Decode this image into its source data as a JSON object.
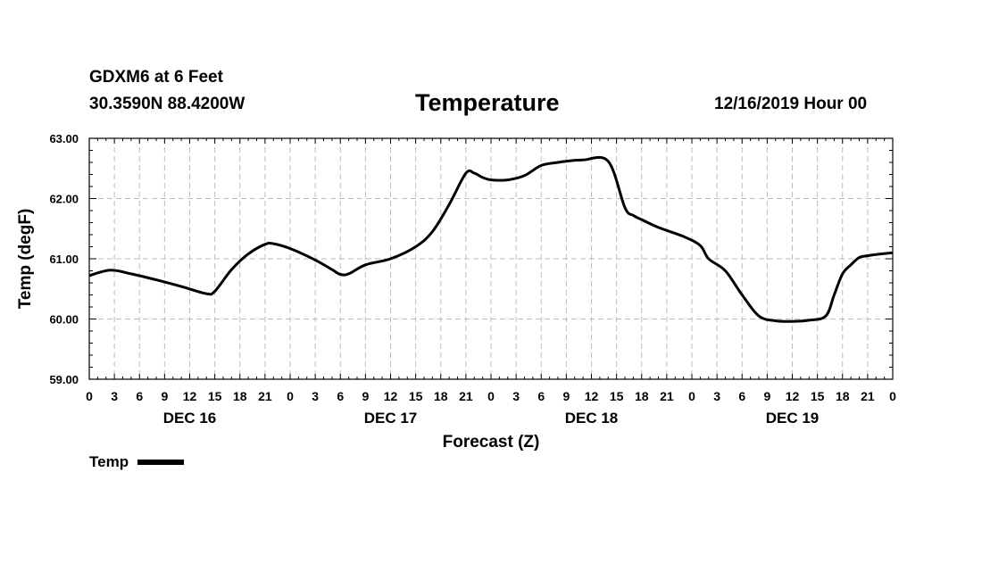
{
  "header": {
    "station": "GDXM6 at 6 Feet",
    "coordinates": "30.3590N 88.4200W",
    "title": "Temperature",
    "datetime": "12/16/2019 Hour 00"
  },
  "chart_data": {
    "type": "line",
    "title": "Temperature",
    "xlabel": "Forecast (Z)",
    "ylabel": "Temp (degF)",
    "ylim": [
      59,
      63
    ],
    "xlim": [
      0,
      96
    ],
    "grid": true,
    "y_ticks": [
      "59.00",
      "60.00",
      "61.00",
      "62.00",
      "63.00"
    ],
    "x_ticks": [
      "0",
      "3",
      "6",
      "9",
      "12",
      "15",
      "18",
      "21",
      "0",
      "3",
      "6",
      "9",
      "12",
      "15",
      "18",
      "21",
      "0",
      "3",
      "6",
      "9",
      "12",
      "15",
      "18",
      "21",
      "0",
      "3",
      "6",
      "9",
      "12",
      "15",
      "18",
      "21",
      "0"
    ],
    "day_labels": [
      {
        "hour": 12,
        "label": "DEC 16"
      },
      {
        "hour": 36,
        "label": "DEC 17"
      },
      {
        "hour": 60,
        "label": "DEC 18"
      },
      {
        "hour": 84,
        "label": "DEC 19"
      }
    ],
    "legend": {
      "position": "bottom-left",
      "label": "Temp"
    },
    "series": [
      {
        "name": "Temp",
        "color": "#000000",
        "x": [
          0,
          2.5,
          5,
          8,
          11,
          14,
          15,
          17,
          19,
          21,
          22,
          24,
          27,
          29,
          30,
          31,
          33,
          36,
          39,
          41,
          43,
          45,
          46,
          47,
          48,
          50,
          52,
          54,
          56,
          57,
          59,
          62,
          64,
          65,
          66,
          68,
          71,
          73,
          74,
          76,
          78,
          80,
          82,
          84,
          86,
          88,
          89,
          90,
          91,
          92,
          93,
          94,
          96
        ],
        "y": [
          60.72,
          60.81,
          60.75,
          60.65,
          60.54,
          60.42,
          60.46,
          60.82,
          61.08,
          61.24,
          61.25,
          61.17,
          60.98,
          60.82,
          60.74,
          60.75,
          60.9,
          61.0,
          61.2,
          61.45,
          61.9,
          62.42,
          62.42,
          62.35,
          62.31,
          62.31,
          62.38,
          62.55,
          62.6,
          62.62,
          62.64,
          62.62,
          61.85,
          61.72,
          61.65,
          61.52,
          61.37,
          61.22,
          61.0,
          60.8,
          60.4,
          60.05,
          59.97,
          59.96,
          59.98,
          60.05,
          60.4,
          60.75,
          60.9,
          61.02,
          61.05,
          61.07,
          61.1
        ]
      }
    ]
  }
}
